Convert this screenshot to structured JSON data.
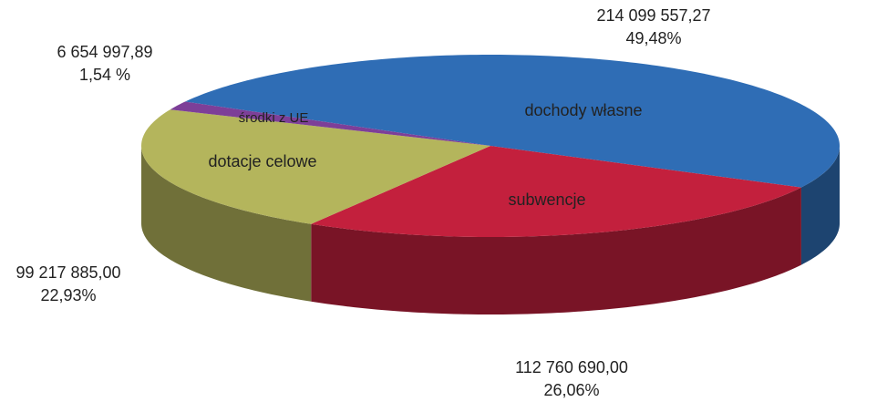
{
  "chart_data": {
    "type": "pie",
    "categories": [
      "dochody własne",
      "subwencje",
      "dotacje celowe",
      "środki  z UE"
    ],
    "values": [
      214099557.27,
      112760690.0,
      99217885.0,
      6654997.89
    ],
    "value_labels": [
      "214 099 557,27",
      "112 760 690,00",
      "99 217 885,00",
      "6 654 997,89"
    ],
    "percents": [
      49.48,
      26.06,
      22.93,
      1.54
    ],
    "percent_labels": [
      "49,48%",
      "26,06%",
      "22,93%",
      "1,54 %"
    ],
    "colors": [
      "#2f6db5",
      "#c3203d",
      "#b4b55c",
      "#7d3f98"
    ]
  }
}
